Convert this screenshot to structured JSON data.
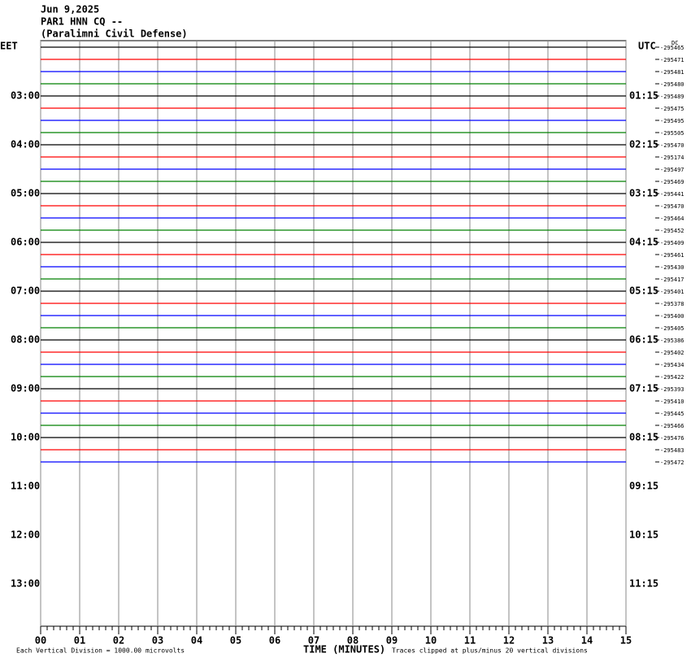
{
  "header": {
    "date": "Jun 9,2025",
    "station": "PAR1 HNN CQ --",
    "location": "(Paralimni Civil Defense)"
  },
  "chart_data": {
    "type": "helicorder",
    "left_axis_label": "EET",
    "right_axis_label": "UTC",
    "dc_label": "DC",
    "hour_labels_left": [
      "03:00",
      "04:00",
      "05:00",
      "06:00",
      "07:00",
      "08:00",
      "09:00",
      "10:00",
      "11:00",
      "12:00",
      "13:00"
    ],
    "hour_labels_right": [
      "01:15",
      "02:15",
      "03:15",
      "04:15",
      "05:15",
      "06:15",
      "07:15",
      "08:15",
      "09:15",
      "10:15",
      "11:15"
    ],
    "trace_colors": [
      "#000000",
      "#ff0000",
      "#0000ff",
      "#008000"
    ],
    "offsets": [
      -295465,
      -295471,
      -295481,
      -295480,
      -295489,
      -295475,
      -295495,
      -295505,
      -295470,
      -295174,
      -295497,
      -295469,
      -295441,
      -295470,
      -295464,
      -295452,
      -295409,
      -295461,
      -295430,
      -295417,
      -295401,
      -295378,
      -295400,
      -295405,
      -295386,
      -295402,
      -295434,
      -295422,
      -295393,
      -295410,
      -295445,
      -295466,
      -295476,
      -295483,
      -295472
    ],
    "xlim": [
      0,
      15
    ],
    "xticks": [
      {
        "value": 0,
        "label": "00"
      },
      {
        "value": 1,
        "label": "01"
      },
      {
        "value": 2,
        "label": "02"
      },
      {
        "value": 3,
        "label": "03"
      },
      {
        "value": 4,
        "label": "04"
      },
      {
        "value": 5,
        "label": "05"
      },
      {
        "value": 6,
        "label": "06"
      },
      {
        "value": 7,
        "label": "07"
      },
      {
        "value": 8,
        "label": "08"
      },
      {
        "value": 9,
        "label": "09"
      },
      {
        "value": 10,
        "label": "10"
      },
      {
        "value": 11,
        "label": "11"
      },
      {
        "value": 12,
        "label": "12"
      },
      {
        "value": 13,
        "label": "13"
      },
      {
        "value": 14,
        "label": "14"
      },
      {
        "value": 15,
        "label": "15"
      }
    ],
    "x_label": "TIME (MINUTES)"
  },
  "footer": {
    "scale": "Each Vertical Division = 1000.00 microvolts",
    "clip": "Traces clipped at plus/minus 20 vertical divisions"
  }
}
